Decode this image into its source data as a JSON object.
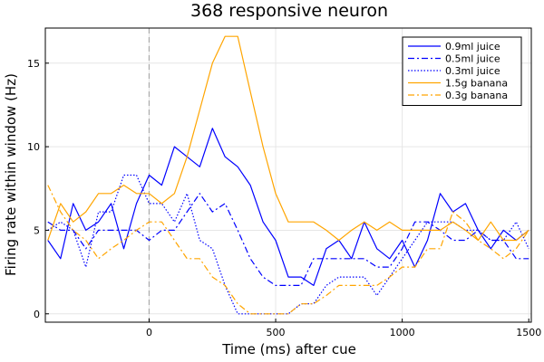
{
  "chart_data": {
    "type": "line",
    "title": "368 responsive neuron",
    "xlabel": "Time (ms) after cue",
    "ylabel": "Firing rate within window (Hz)",
    "xlim": [
      -410,
      1510
    ],
    "ylim": [
      -0.5,
      17.1
    ],
    "xticks": [
      0,
      500,
      1000,
      1500
    ],
    "yticks": [
      0,
      5,
      10,
      15
    ],
    "grid": true,
    "legend_position": "top-right",
    "cue_line": {
      "x": 0,
      "style": "dashed",
      "color": "#aaaaaa"
    },
    "x": [
      -400,
      -350,
      -300,
      -250,
      -200,
      -150,
      -100,
      -50,
      0,
      50,
      100,
      150,
      200,
      250,
      300,
      350,
      400,
      450,
      500,
      550,
      600,
      650,
      700,
      750,
      800,
      850,
      900,
      950,
      1000,
      1050,
      1100,
      1150,
      1200,
      1250,
      1300,
      1350,
      1400,
      1450,
      1500
    ],
    "series": [
      {
        "name": "0.9ml juice",
        "color": "#0000ff",
        "dash": "solid",
        "values": [
          4.4,
          3.3,
          6.6,
          5.0,
          5.5,
          6.6,
          3.9,
          6.6,
          8.3,
          7.7,
          10.0,
          9.4,
          8.8,
          11.1,
          9.4,
          8.8,
          7.7,
          5.5,
          4.4,
          2.2,
          2.2,
          1.7,
          3.9,
          4.4,
          3.3,
          5.5,
          3.9,
          3.3,
          4.4,
          2.8,
          4.4,
          7.2,
          6.1,
          6.6,
          5.0,
          3.9,
          5.0,
          4.4,
          5.0
        ]
      },
      {
        "name": "0.5ml juice",
        "color": "#0000ff",
        "dash": "dashdot",
        "values": [
          5.5,
          5.0,
          5.0,
          3.9,
          5.0,
          5.0,
          5.0,
          5.0,
          4.4,
          5.0,
          5.0,
          6.1,
          7.2,
          6.1,
          6.6,
          5.0,
          3.3,
          2.2,
          1.7,
          1.7,
          1.7,
          3.3,
          3.3,
          3.3,
          3.3,
          3.3,
          2.8,
          2.8,
          3.9,
          5.5,
          5.5,
          5.0,
          4.4,
          4.4,
          5.0,
          4.4,
          4.4,
          3.3,
          3.3
        ]
      },
      {
        "name": "0.3ml juice",
        "color": "#0000ff",
        "dash": "dotted",
        "values": [
          5.0,
          5.5,
          5.0,
          2.8,
          6.1,
          6.1,
          8.3,
          8.3,
          6.6,
          6.6,
          5.5,
          7.2,
          4.4,
          3.9,
          1.7,
          0.0,
          0.0,
          0.0,
          0.0,
          0.0,
          0.6,
          0.6,
          1.7,
          2.2,
          2.2,
          2.2,
          1.1,
          2.2,
          3.3,
          4.4,
          5.5,
          5.5,
          5.5,
          5.0,
          5.0,
          4.4,
          4.4,
          5.5,
          3.9
        ]
      },
      {
        "name": "1.5g banana",
        "color": "#ffa500",
        "dash": "solid",
        "values": [
          4.4,
          6.6,
          5.5,
          6.1,
          7.2,
          7.2,
          7.7,
          7.2,
          7.2,
          6.6,
          7.2,
          9.4,
          12.2,
          15.0,
          16.6,
          16.6,
          13.3,
          10.0,
          7.2,
          5.5,
          5.5,
          5.5,
          5.0,
          4.4,
          5.0,
          5.5,
          5.0,
          5.5,
          5.0,
          5.0,
          5.0,
          5.0,
          5.5,
          5.0,
          4.4,
          5.5,
          4.4,
          4.4,
          5.0
        ]
      },
      {
        "name": "0.3g banana",
        "color": "#ffa500",
        "dash": "dashdot",
        "values": [
          7.7,
          6.1,
          5.0,
          4.4,
          3.3,
          3.9,
          4.4,
          5.0,
          5.5,
          5.5,
          4.4,
          3.3,
          3.3,
          2.2,
          1.7,
          0.6,
          0.0,
          0.0,
          0.0,
          0.0,
          0.6,
          0.6,
          1.1,
          1.7,
          1.7,
          1.7,
          1.7,
          2.2,
          2.8,
          2.8,
          3.9,
          3.9,
          6.1,
          5.5,
          4.4,
          3.9,
          3.3,
          3.9,
          5.0
        ]
      }
    ]
  }
}
